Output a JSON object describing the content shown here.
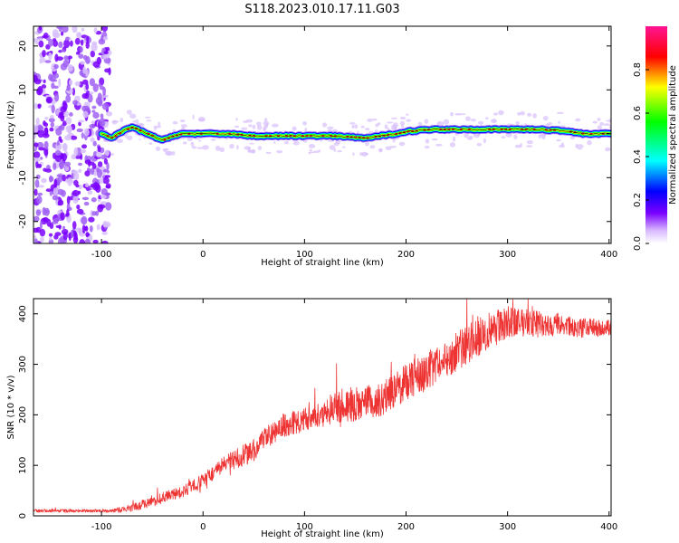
{
  "title": "S118.2023.010.17.11.G03",
  "chart_data": [
    {
      "type": "heatmap",
      "xlabel": "Height of straight line (km)",
      "ylabel": "Frequency (Hz)",
      "xlim": [
        -167,
        402
      ],
      "ylim": [
        -25,
        24.5
      ],
      "xticks": [
        -100,
        0,
        100,
        200,
        300,
        400
      ],
      "yticks": [
        -20,
        -10,
        0,
        10,
        20
      ],
      "colorbar": {
        "label": "Normalized spectral amplitude",
        "range": [
          0,
          1
        ],
        "ticks": [
          0.0,
          0.2,
          0.4,
          0.6,
          0.8
        ],
        "colormap": [
          "#ffffff",
          "#c89af5",
          "#7a00ff",
          "#0000ff",
          "#00ffff",
          "#00ff00",
          "#ffff00",
          "#ff0000",
          "#ff1493"
        ]
      },
      "ridge_frequency": {
        "x": [
          -100,
          -90,
          -80,
          -70,
          -60,
          -50,
          -40,
          -30,
          -20,
          -10,
          0,
          25,
          50,
          75,
          100,
          125,
          150,
          160,
          175,
          190,
          200,
          225,
          250,
          275,
          300,
          325,
          350,
          360,
          375,
          400
        ],
        "y": [
          0,
          -1,
          0.5,
          1.5,
          0.5,
          -0.5,
          -1.5,
          -0.5,
          0,
          0,
          0,
          0,
          -0.5,
          -0.5,
          -0.5,
          -0.5,
          -0.8,
          -1,
          -0.5,
          0,
          0.5,
          1,
          1,
          1,
          1,
          1,
          0.8,
          0.5,
          0,
          0
        ]
      },
      "noise_region_x": [
        -167,
        -92
      ]
    },
    {
      "type": "line",
      "xlabel": "Height of straight line (km)",
      "ylabel": "SNR (10 * v/v)",
      "xlim": [
        -167,
        402
      ],
      "ylim": [
        0,
        430
      ],
      "xticks": [
        -100,
        0,
        100,
        200,
        300,
        400
      ],
      "yticks": [
        0,
        100,
        200,
        300,
        400
      ],
      "color": "#ee3333",
      "series": [
        {
          "x": [
            -167,
            -140,
            -110,
            -90,
            -80,
            -70,
            -60,
            -50,
            -40,
            -30,
            -20,
            -10,
            0,
            10,
            20,
            30,
            40,
            50,
            60,
            70,
            80,
            90,
            100,
            110,
            120,
            125,
            130,
            140,
            150,
            160,
            170,
            180,
            190,
            200,
            210,
            220,
            230,
            240,
            250,
            260,
            270,
            280,
            290,
            300,
            310,
            320,
            330,
            340,
            350,
            360,
            370,
            380,
            390,
            402
          ],
          "y": [
            10,
            10,
            10,
            10,
            12,
            16,
            22,
            28,
            35,
            42,
            48,
            58,
            70,
            85,
            100,
            110,
            120,
            130,
            150,
            165,
            180,
            185,
            190,
            200,
            200,
            210,
            215,
            220,
            220,
            225,
            225,
            235,
            250,
            265,
            275,
            285,
            300,
            310,
            325,
            340,
            355,
            365,
            375,
            385,
            380,
            385,
            380,
            375,
            380,
            375,
            370,
            375,
            370,
            370
          ],
          "noise": [
            3,
            3,
            3,
            3,
            6,
            8,
            10,
            10,
            12,
            12,
            12,
            14,
            15,
            16,
            18,
            20,
            22,
            22,
            22,
            22,
            24,
            24,
            24,
            24,
            24,
            30,
            32,
            34,
            34,
            34,
            34,
            36,
            38,
            38,
            38,
            38,
            38,
            38,
            40,
            40,
            40,
            40,
            36,
            32,
            30,
            28,
            26,
            24,
            22,
            20,
            20,
            18,
            18,
            18
          ]
        }
      ]
    }
  ]
}
